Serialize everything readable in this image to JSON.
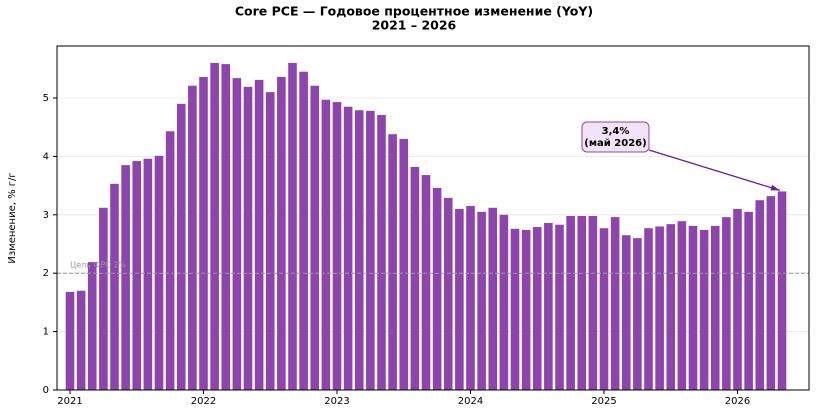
{
  "chart_data": {
    "type": "bar",
    "title": "Core PCE — Годовое процентное изменение (YoY)",
    "subtitle": "2021 – 2026",
    "y_label": "Изменение, % г/г",
    "color": "#8e44ad",
    "categories": [
      "2021",
      null,
      null,
      null,
      null,
      null,
      null,
      null,
      null,
      null,
      null,
      null,
      "2022",
      null,
      null,
      null,
      null,
      null,
      null,
      null,
      null,
      null,
      null,
      null,
      "2023",
      null,
      null,
      null,
      null,
      null,
      null,
      null,
      null,
      null,
      null,
      null,
      "2024",
      null,
      null,
      null,
      null,
      null,
      null,
      null,
      null,
      null,
      null,
      null,
      "2025",
      null,
      null,
      null,
      null,
      null,
      null,
      null,
      null,
      null,
      null,
      null,
      "2026",
      null,
      null,
      null,
      null
    ],
    "values": [
      1.68,
      1.7,
      2.19,
      3.12,
      3.53,
      3.85,
      3.92,
      3.96,
      4.01,
      4.43,
      4.9,
      5.21,
      5.36,
      5.6,
      5.58,
      5.34,
      5.19,
      5.31,
      5.1,
      5.36,
      5.6,
      5.45,
      5.21,
      4.97,
      4.93,
      4.85,
      4.79,
      4.78,
      4.71,
      4.38,
      4.3,
      3.82,
      3.68,
      3.46,
      3.29,
      3.1,
      3.15,
      3.05,
      3.12,
      3.0,
      2.76,
      2.74,
      2.79,
      2.86,
      2.83,
      2.98,
      2.98,
      2.98,
      2.77,
      2.96,
      2.65,
      2.6,
      2.77,
      2.8,
      2.84,
      2.89,
      2.81,
      2.74,
      2.81,
      2.96,
      3.1,
      3.05,
      3.25,
      3.32,
      3.4
    ],
    "ylim": [
      0,
      5.89
    ],
    "yticks": [
      0,
      1,
      2,
      3,
      4,
      5
    ],
    "grid": true,
    "target_line": {
      "value": 2,
      "label": "Цель ФРС 2%"
    },
    "annotation": {
      "lines": [
        "3,4%",
        "(май 2026)"
      ],
      "index": 64
    }
  }
}
